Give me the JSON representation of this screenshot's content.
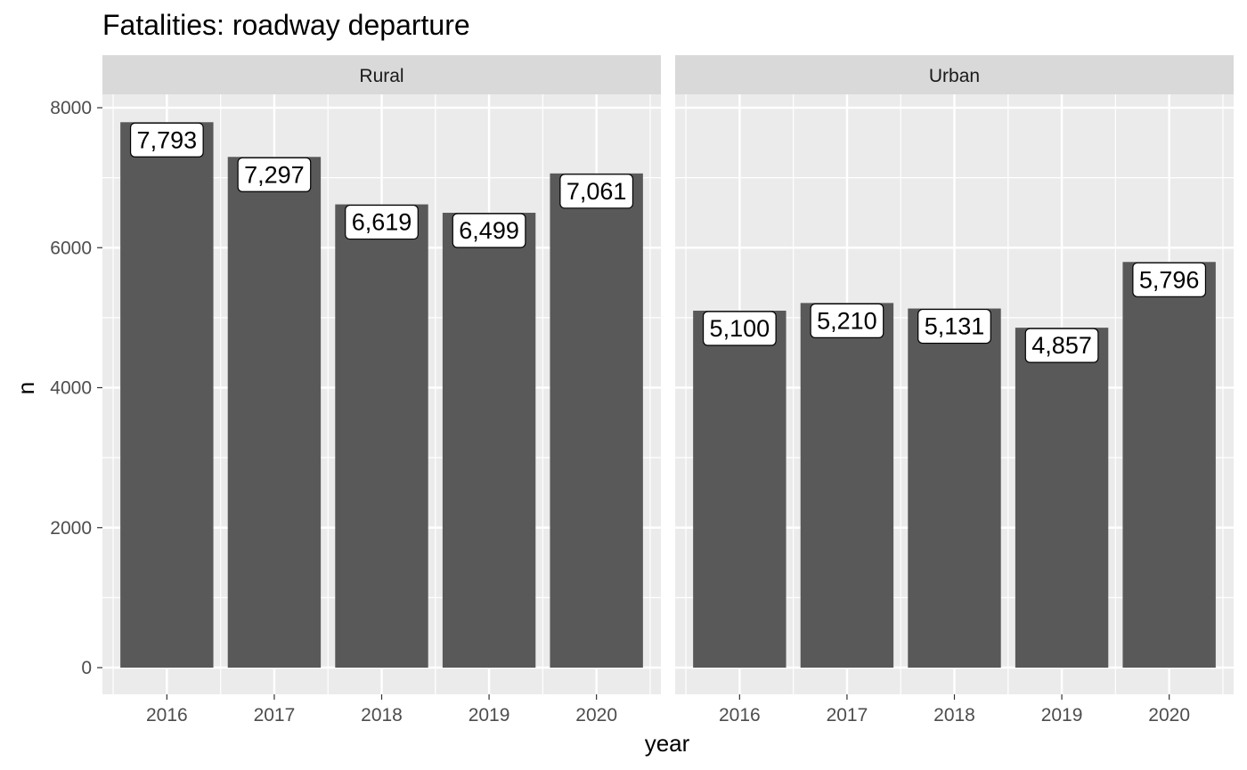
{
  "chart_data": {
    "type": "bar",
    "title": "Fatalities: roadway departure",
    "xlabel": "year",
    "ylabel": "n",
    "ylim": [
      0,
      8000
    ],
    "y_ticks": [
      0,
      2000,
      4000,
      6000,
      8000
    ],
    "y_tick_labels": [
      "0",
      "2000",
      "4000",
      "6000",
      "8000"
    ],
    "grid": true,
    "legend": "none",
    "categories": [
      "2016",
      "2017",
      "2018",
      "2019",
      "2020"
    ],
    "facets": [
      {
        "name": "Rural",
        "values": [
          7793,
          7297,
          6619,
          6499,
          7061
        ],
        "labels": [
          "7,793",
          "7,297",
          "6,619",
          "6,499",
          "7,061"
        ]
      },
      {
        "name": "Urban",
        "values": [
          5100,
          5210,
          5131,
          4857,
          5796
        ],
        "labels": [
          "5,100",
          "5,210",
          "5,131",
          "4,857",
          "5,796"
        ]
      }
    ],
    "colors": {
      "bar": "#595959",
      "panel_bg": "#ebebeb",
      "strip_bg": "#d9d9d9",
      "grid": "#ffffff",
      "text": "#000000",
      "tick_text": "#4d4d4d",
      "strip_text": "#1a1a1a"
    }
  }
}
